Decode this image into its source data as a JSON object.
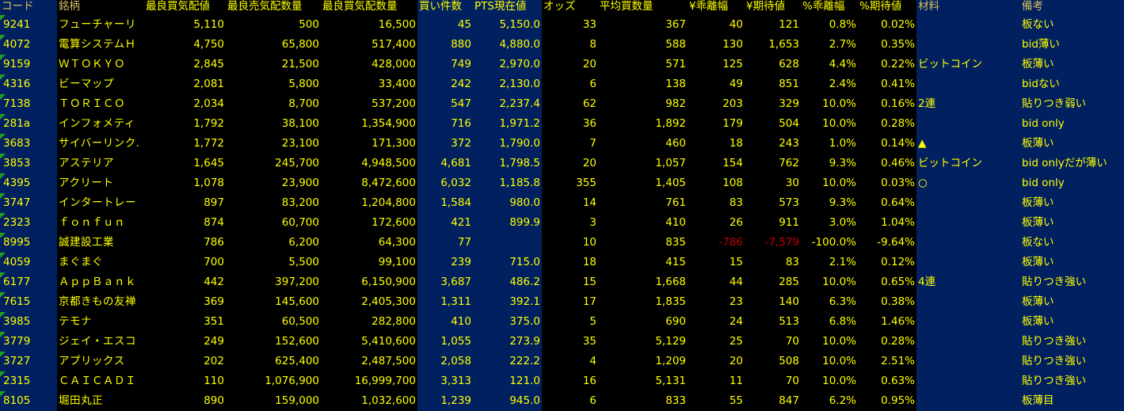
{
  "colors": {
    "cell_bg": "#000000",
    "highlight_bg": "#002060",
    "text": "#ffff00",
    "negative": "#c00000",
    "error_indicator": "#1ea01e"
  },
  "headers": [
    "コード",
    "銘柄",
    "最良買気配値",
    "最良売気配数量",
    "最良買気配数量",
    "買い件数",
    "PTS現在値",
    "オッズ",
    "平均買数量",
    "¥乖離幅",
    "¥期待値",
    "%乖離幅",
    "%期待値",
    "材料",
    "備考"
  ],
  "rows": [
    [
      "9241",
      "フューチャーリ",
      "5,110",
      "500",
      "16,500",
      "45",
      "5,150.0",
      "33",
      "367",
      "40",
      "121",
      "0.8%",
      "0.02%",
      "",
      "板ない"
    ],
    [
      "4072",
      "電算システムＨ",
      "4,750",
      "65,800",
      "517,400",
      "880",
      "4,880.0",
      "8",
      "588",
      "130",
      "1,653",
      "2.7%",
      "0.35%",
      "",
      "bid薄い"
    ],
    [
      "9159",
      "ＷＴＯＫＹＯ",
      "2,845",
      "21,500",
      "428,000",
      "749",
      "2,970.0",
      "20",
      "571",
      "125",
      "628",
      "4.4%",
      "0.22%",
      "ビットコイン",
      "板薄い"
    ],
    [
      "4316",
      "ビーマップ",
      "2,081",
      "5,800",
      "33,400",
      "242",
      "2,130.0",
      "6",
      "138",
      "49",
      "851",
      "2.4%",
      "0.41%",
      "",
      "bidない"
    ],
    [
      "7138",
      "ＴＯＲＩＣＯ",
      "2,034",
      "8,700",
      "537,200",
      "547",
      "2,237.4",
      "62",
      "982",
      "203",
      "329",
      "10.0%",
      "0.16%",
      "2連",
      "貼りつき弱い"
    ],
    [
      "281a",
      "インフォメティ",
      "1,792",
      "38,100",
      "1,354,900",
      "716",
      "1,971.2",
      "36",
      "1,892",
      "179",
      "504",
      "10.0%",
      "0.28%",
      "",
      "bid only"
    ],
    [
      "3683",
      "サイバーリンク.",
      "1,772",
      "23,100",
      "171,300",
      "372",
      "1,790.0",
      "7",
      "460",
      "18",
      "243",
      "1.0%",
      "0.14%",
      "▲",
      "板薄い"
    ],
    [
      "3853",
      "アステリア",
      "1,645",
      "245,700",
      "4,948,500",
      "4,681",
      "1,798.5",
      "20",
      "1,057",
      "154",
      "762",
      "9.3%",
      "0.46%",
      "ビットコイン",
      "bid onlyだが薄い"
    ],
    [
      "4395",
      "アクリート",
      "1,078",
      "23,900",
      "8,472,600",
      "6,032",
      "1,185.8",
      "355",
      "1,405",
      "108",
      "30",
      "10.0%",
      "0.03%",
      "○",
      "bid only"
    ],
    [
      "3747",
      "インタートレー",
      "897",
      "83,200",
      "1,204,800",
      "1,584",
      "980.0",
      "14",
      "761",
      "83",
      "573",
      "9.3%",
      "0.64%",
      "",
      "板薄い"
    ],
    [
      "2323",
      "ｆｏｎｆｕｎ",
      "874",
      "60,700",
      "172,600",
      "421",
      "899.9",
      "3",
      "410",
      "26",
      "911",
      "3.0%",
      "1.04%",
      "",
      "板薄い"
    ],
    [
      "8995",
      "誠建設工業",
      "786",
      "6,200",
      "64,300",
      "77",
      "",
      "10",
      "835",
      "-786",
      "-7,579",
      "-100.0%",
      "-9.64%",
      "",
      "板ない"
    ],
    [
      "4059",
      "まぐまぐ",
      "700",
      "5,500",
      "99,100",
      "239",
      "715.0",
      "18",
      "415",
      "15",
      "83",
      "2.1%",
      "0.12%",
      "",
      "板薄い"
    ],
    [
      "6177",
      "ＡｐｐＢａｎｋ",
      "442",
      "397,200",
      "6,150,900",
      "3,687",
      "486.2",
      "15",
      "1,668",
      "44",
      "285",
      "10.0%",
      "0.65%",
      "4連",
      "貼りつき強い"
    ],
    [
      "7615",
      "京都きもの友禅",
      "369",
      "145,600",
      "2,405,300",
      "1,311",
      "392.1",
      "17",
      "1,835",
      "23",
      "140",
      "6.3%",
      "0.38%",
      "",
      "板薄い"
    ],
    [
      "3985",
      "テモナ",
      "351",
      "60,500",
      "282,800",
      "410",
      "375.0",
      "5",
      "690",
      "24",
      "513",
      "6.8%",
      "1.46%",
      "",
      "板薄い"
    ],
    [
      "3779",
      "ジェイ・エスコ",
      "249",
      "152,600",
      "5,410,600",
      "1,055",
      "273.9",
      "35",
      "5,129",
      "25",
      "70",
      "10.0%",
      "0.28%",
      "",
      "貼りつき強い"
    ],
    [
      "3727",
      "アプリックス",
      "202",
      "625,400",
      "2,487,500",
      "2,058",
      "222.2",
      "4",
      "1,209",
      "20",
      "508",
      "10.0%",
      "2.51%",
      "",
      "貼りつき強い"
    ],
    [
      "2315",
      "ＣＡＩＣＡＤＩ",
      "110",
      "1,076,900",
      "16,999,700",
      "3,313",
      "121.0",
      "16",
      "5,131",
      "11",
      "70",
      "10.0%",
      "0.63%",
      "",
      "貼りつき強い"
    ],
    [
      "8105",
      "堀田丸正",
      "890",
      "159,000",
      "1,032,600",
      "1,239",
      "945.0",
      "6",
      "833",
      "55",
      "847",
      "6.2%",
      "0.95%",
      "",
      "板薄目"
    ]
  ]
}
